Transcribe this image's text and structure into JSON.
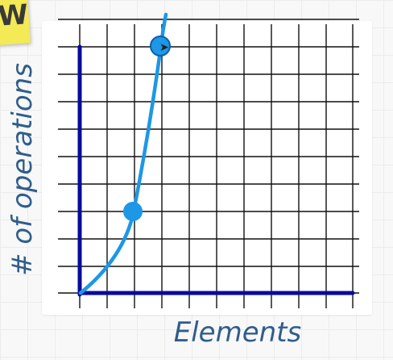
{
  "sticky_note": {
    "letter": "W"
  },
  "diagram": {
    "y_axis_label": "# of operations",
    "x_axis_label": "Elements",
    "colors": {
      "axis": "#0a0a9e",
      "curve": "#1d97e6",
      "grid": "#111111",
      "label": "#2f5d8c",
      "sticky": "#f3ea55"
    },
    "icons": [
      "cursor-arrow-icon"
    ]
  }
}
